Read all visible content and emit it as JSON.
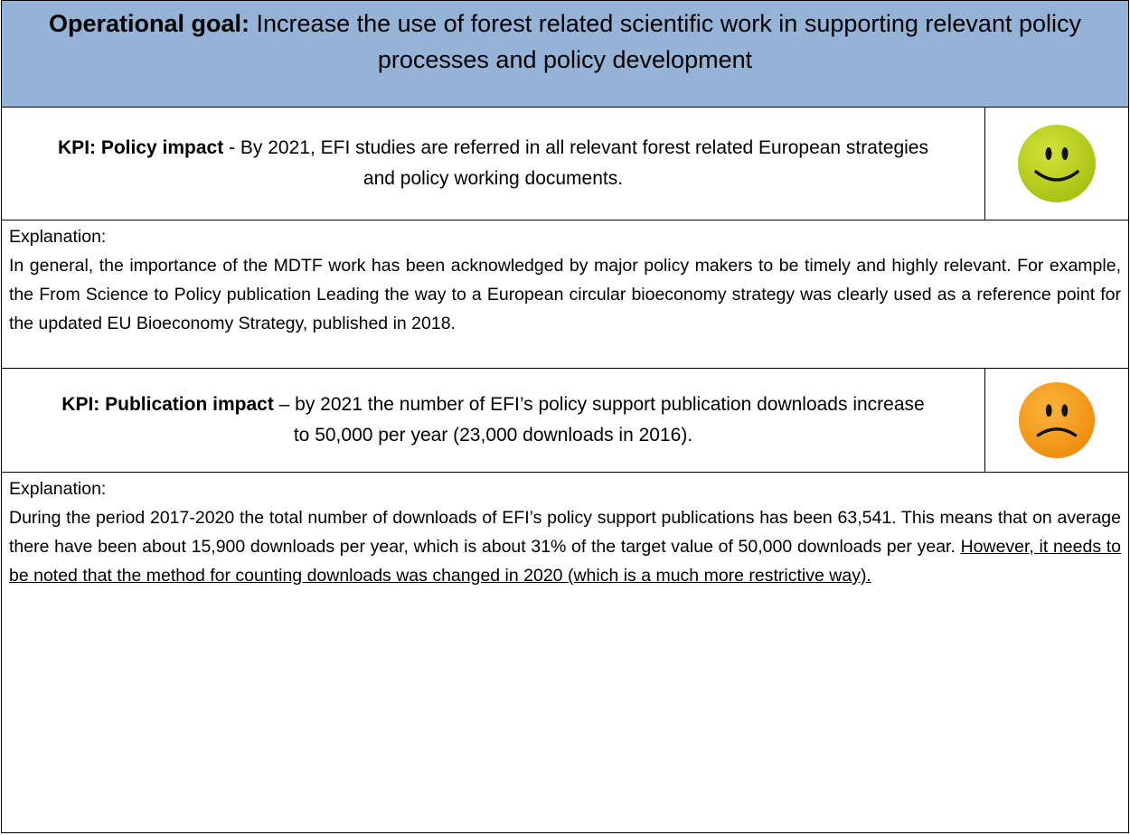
{
  "header": {
    "label": "Operational goal:",
    "text": "Increase the use of forest related scientific work in supporting relevant policy processes and policy development"
  },
  "kpis": [
    {
      "label": "KPI: Policy impact",
      "text": "- By 2021, EFI studies are referred in all relevant forest related European strategies and policy working documents.",
      "explanation": {
        "label": "Explanation:",
        "text": "In general, the importance of the MDTF work has been acknowledged by major policy makers to be timely and highly relevant. For example, the From Science to Policy publication Leading the way to a European circular bioeconomy strategy was clearly used as a reference point for the updated EU Bioeconomy Strategy, published in 2018."
      }
    },
    {
      "label": "KPI: Publication impact",
      "text": "– by 2021 the number of EFI’s policy support publication downloads increase to 50,000 per year (23,000 downloads in 2016).",
      "explanation": {
        "label": "Explanation:",
        "text": "During the period 2017-2020 the total number of downloads of EFI’s policy support publications has been 63,541. This means that on average there have been about 15,900 downloads per year, which is about 31% of the target value of 50,000 downloads per year.",
        "underlined": "However, it needs to be noted that the method for counting downloads was changed in 2020 (which is a much more restrictive way)."
      }
    }
  ]
}
